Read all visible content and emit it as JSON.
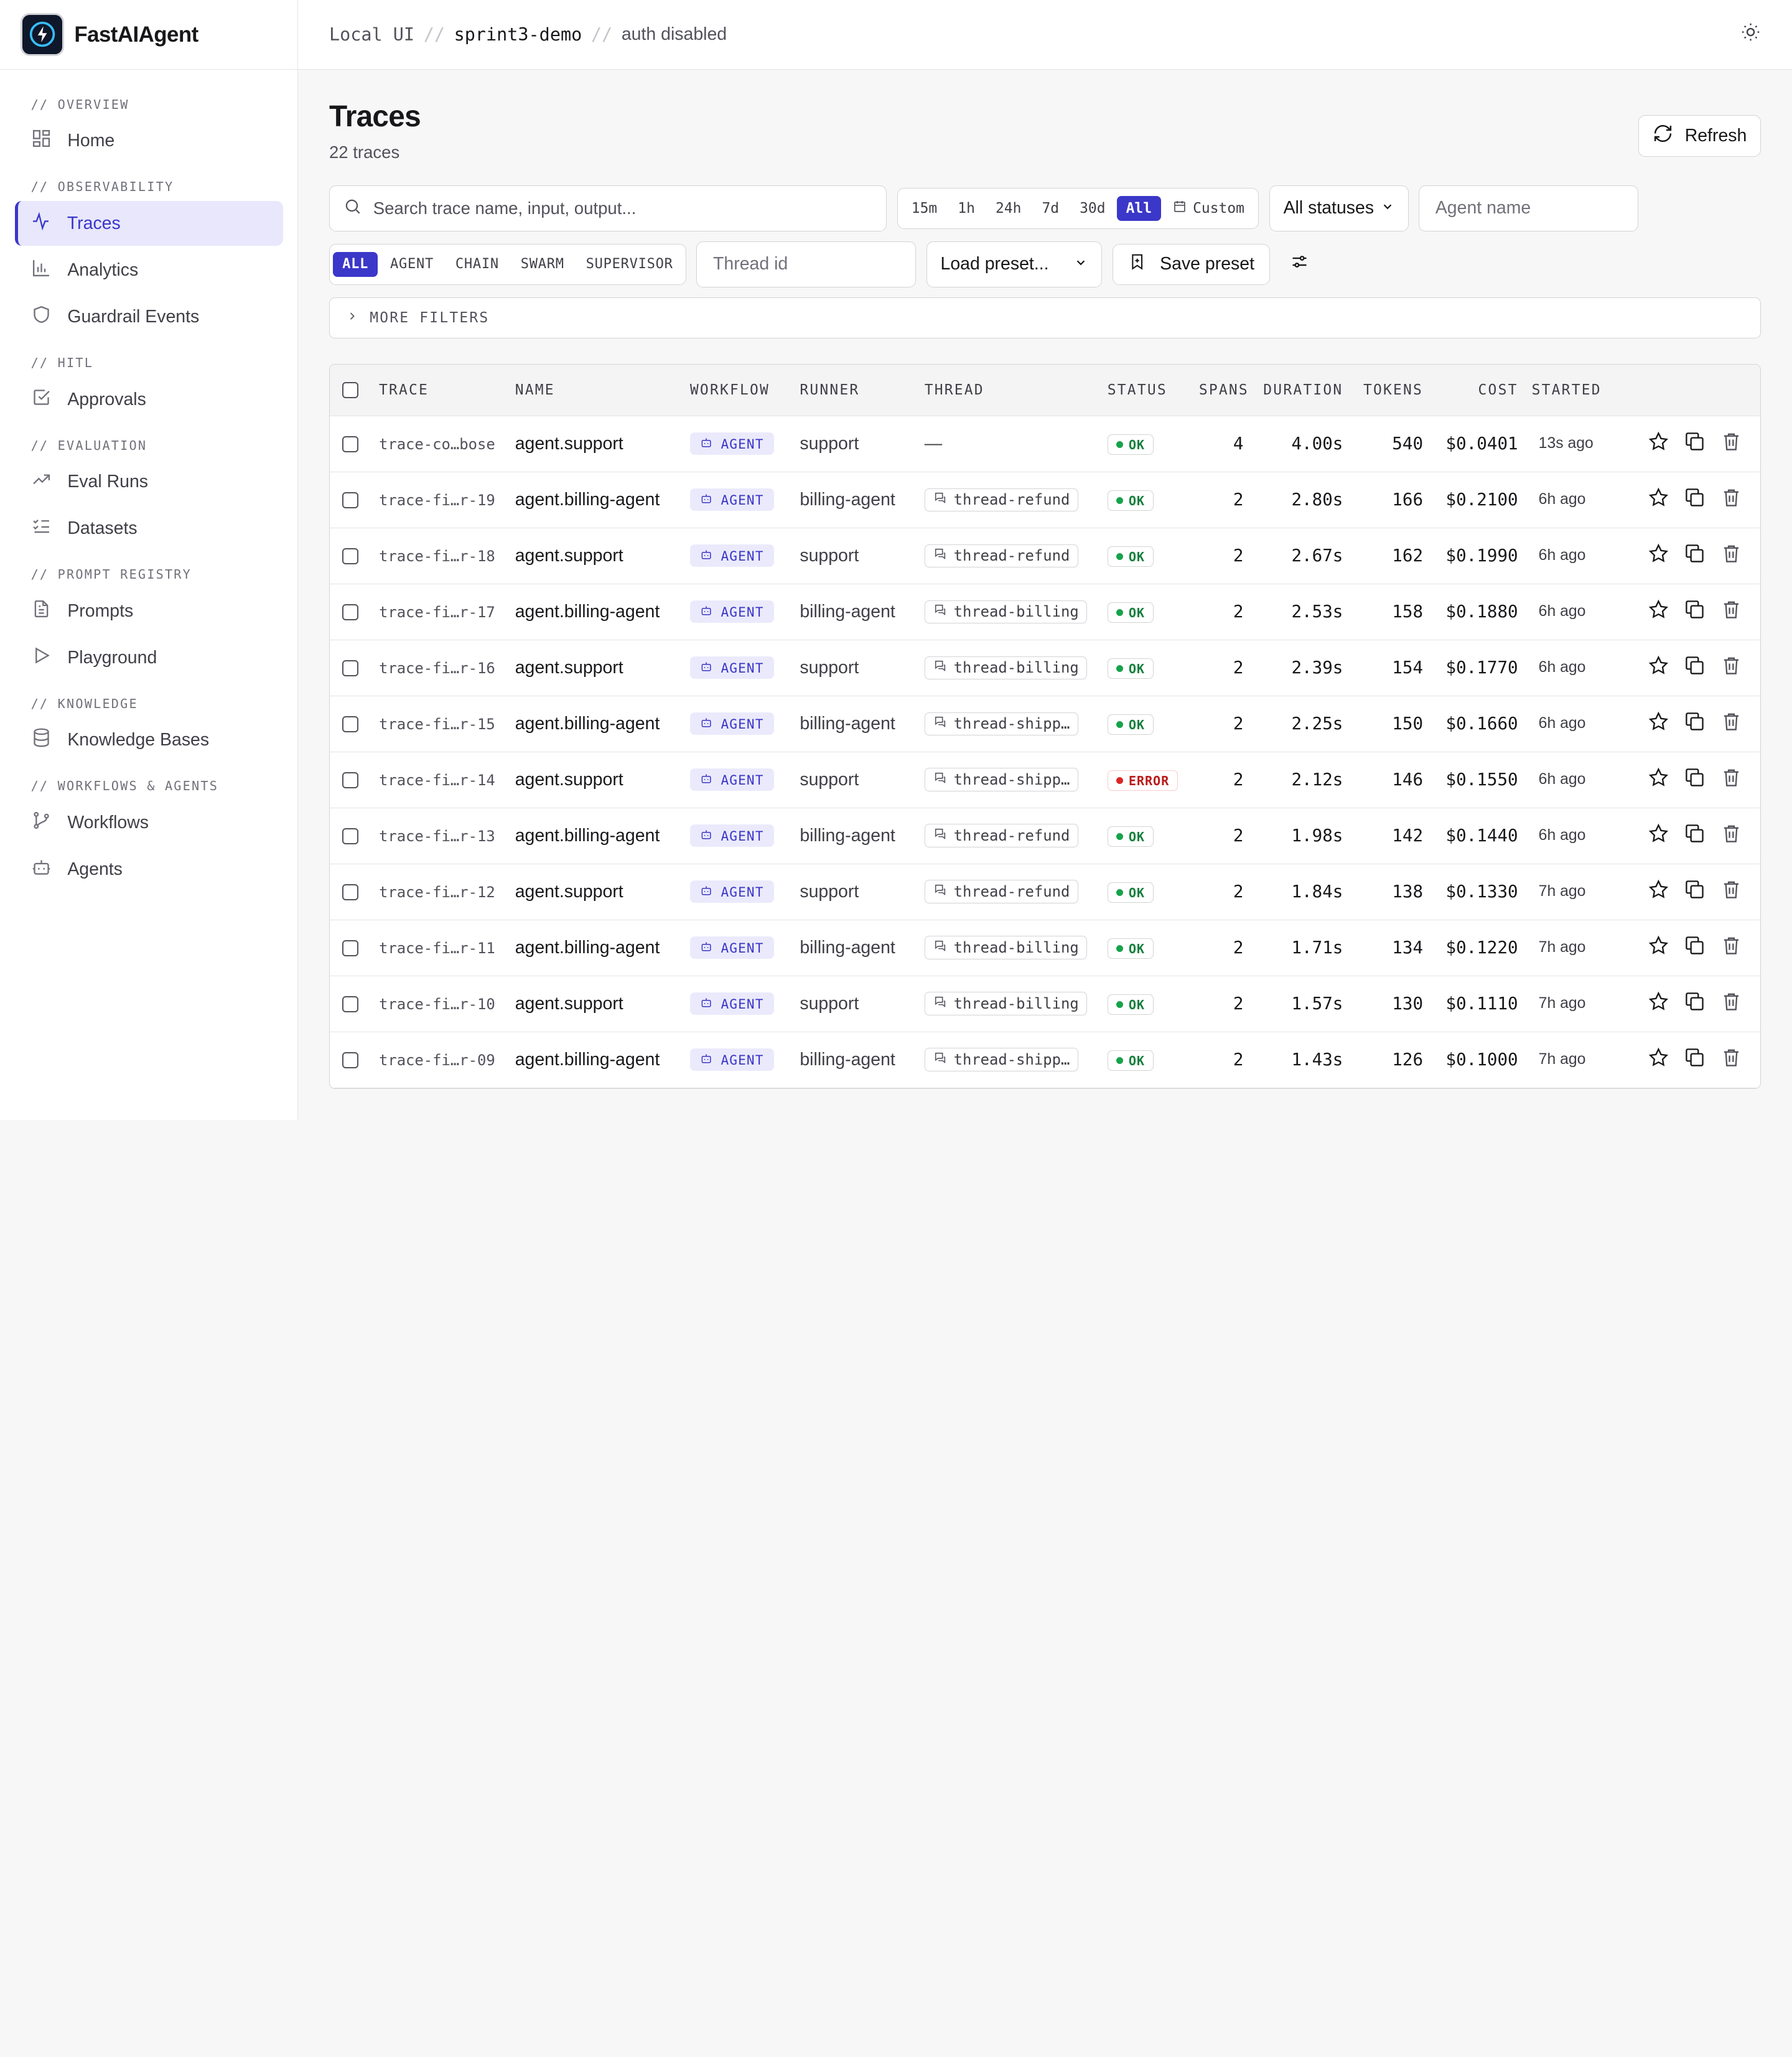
{
  "brand": {
    "name": "FastAIAgent"
  },
  "breadcrumb": {
    "local": "Local UI",
    "sep": "//",
    "project": "sprint3-demo",
    "auth": "auth disabled"
  },
  "sidebar": {
    "sections": [
      {
        "label": "// OVERVIEW",
        "items": [
          {
            "label": "Home",
            "icon": "grid-icon"
          }
        ]
      },
      {
        "label": "// OBSERVABILITY",
        "items": [
          {
            "label": "Traces",
            "icon": "activity-icon",
            "active": true
          },
          {
            "label": "Analytics",
            "icon": "bar-chart-icon"
          },
          {
            "label": "Guardrail Events",
            "icon": "shield-icon"
          }
        ]
      },
      {
        "label": "// HITL",
        "items": [
          {
            "label": "Approvals",
            "icon": "check-square-icon"
          }
        ]
      },
      {
        "label": "// EVALUATION",
        "items": [
          {
            "label": "Eval Runs",
            "icon": "trending-up-icon"
          },
          {
            "label": "Datasets",
            "icon": "list-checks-icon"
          }
        ]
      },
      {
        "label": "// PROMPT REGISTRY",
        "items": [
          {
            "label": "Prompts",
            "icon": "file-text-icon"
          },
          {
            "label": "Playground",
            "icon": "play-icon"
          }
        ]
      },
      {
        "label": "// KNOWLEDGE",
        "items": [
          {
            "label": "Knowledge Bases",
            "icon": "database-icon"
          }
        ]
      },
      {
        "label": "// WORKFLOWS & AGENTS",
        "items": [
          {
            "label": "Workflows",
            "icon": "git-branch-icon"
          },
          {
            "label": "Agents",
            "icon": "bot-icon"
          }
        ]
      }
    ]
  },
  "page": {
    "title": "Traces",
    "subtitle": "22 traces",
    "refresh_label": "Refresh"
  },
  "filters": {
    "search_placeholder": "Search trace name, input, output...",
    "ranges": [
      "15m",
      "1h",
      "24h",
      "7d",
      "30d",
      "All"
    ],
    "active_range": "All",
    "custom_label": "Custom",
    "status_select": "All statuses",
    "agent_placeholder": "Agent name",
    "kinds": [
      "ALL",
      "AGENT",
      "CHAIN",
      "SWARM",
      "SUPERVISOR"
    ],
    "active_kind": "ALL",
    "thread_placeholder": "Thread id",
    "preset_select": "Load preset...",
    "save_preset_label": "Save preset",
    "more_filters_label": "MORE FILTERS"
  },
  "table": {
    "columns": [
      "TRACE",
      "NAME",
      "WORKFLOW",
      "RUNNER",
      "THREAD",
      "STATUS",
      "SPANS",
      "DURATION",
      "TOKENS",
      "COST",
      "STARTED"
    ],
    "rows": [
      {
        "trace": "trace-co…bose",
        "name": "agent.support",
        "workflow": "AGENT",
        "runner": "support",
        "thread": "—",
        "status": "OK",
        "spans": "4",
        "duration": "4.00s",
        "tokens": "540",
        "cost": "$0.0401",
        "started": "13s ago"
      },
      {
        "trace": "trace-fi…r-19",
        "name": "agent.billing-agent",
        "workflow": "AGENT",
        "runner": "billing-agent",
        "thread": "thread-refund",
        "status": "OK",
        "spans": "2",
        "duration": "2.80s",
        "tokens": "166",
        "cost": "$0.2100",
        "started": "6h ago"
      },
      {
        "trace": "trace-fi…r-18",
        "name": "agent.support",
        "workflow": "AGENT",
        "runner": "support",
        "thread": "thread-refund",
        "status": "OK",
        "spans": "2",
        "duration": "2.67s",
        "tokens": "162",
        "cost": "$0.1990",
        "started": "6h ago"
      },
      {
        "trace": "trace-fi…r-17",
        "name": "agent.billing-agent",
        "workflow": "AGENT",
        "runner": "billing-agent",
        "thread": "thread-billing",
        "status": "OK",
        "spans": "2",
        "duration": "2.53s",
        "tokens": "158",
        "cost": "$0.1880",
        "started": "6h ago"
      },
      {
        "trace": "trace-fi…r-16",
        "name": "agent.support",
        "workflow": "AGENT",
        "runner": "support",
        "thread": "thread-billing",
        "status": "OK",
        "spans": "2",
        "duration": "2.39s",
        "tokens": "154",
        "cost": "$0.1770",
        "started": "6h ago"
      },
      {
        "trace": "trace-fi…r-15",
        "name": "agent.billing-agent",
        "workflow": "AGENT",
        "runner": "billing-agent",
        "thread": "thread-shipp…",
        "status": "OK",
        "spans": "2",
        "duration": "2.25s",
        "tokens": "150",
        "cost": "$0.1660",
        "started": "6h ago"
      },
      {
        "trace": "trace-fi…r-14",
        "name": "agent.support",
        "workflow": "AGENT",
        "runner": "support",
        "thread": "thread-shipp…",
        "status": "ERROR",
        "spans": "2",
        "duration": "2.12s",
        "tokens": "146",
        "cost": "$0.1550",
        "started": "6h ago"
      },
      {
        "trace": "trace-fi…r-13",
        "name": "agent.billing-agent",
        "workflow": "AGENT",
        "runner": "billing-agent",
        "thread": "thread-refund",
        "status": "OK",
        "spans": "2",
        "duration": "1.98s",
        "tokens": "142",
        "cost": "$0.1440",
        "started": "6h ago"
      },
      {
        "trace": "trace-fi…r-12",
        "name": "agent.support",
        "workflow": "AGENT",
        "runner": "support",
        "thread": "thread-refund",
        "status": "OK",
        "spans": "2",
        "duration": "1.84s",
        "tokens": "138",
        "cost": "$0.1330",
        "started": "7h ago"
      },
      {
        "trace": "trace-fi…r-11",
        "name": "agent.billing-agent",
        "workflow": "AGENT",
        "runner": "billing-agent",
        "thread": "thread-billing",
        "status": "OK",
        "spans": "2",
        "duration": "1.71s",
        "tokens": "134",
        "cost": "$0.1220",
        "started": "7h ago"
      },
      {
        "trace": "trace-fi…r-10",
        "name": "agent.support",
        "workflow": "AGENT",
        "runner": "support",
        "thread": "thread-billing",
        "status": "OK",
        "spans": "2",
        "duration": "1.57s",
        "tokens": "130",
        "cost": "$0.1110",
        "started": "7h ago"
      },
      {
        "trace": "trace-fi…r-09",
        "name": "agent.billing-agent",
        "workflow": "AGENT",
        "runner": "billing-agent",
        "thread": "thread-shipp…",
        "status": "OK",
        "spans": "2",
        "duration": "1.43s",
        "tokens": "126",
        "cost": "$0.1000",
        "started": "7h ago"
      }
    ]
  },
  "colors": {
    "accent": "#3b37c9",
    "ok": "#16a34a",
    "error": "#dc2626"
  }
}
